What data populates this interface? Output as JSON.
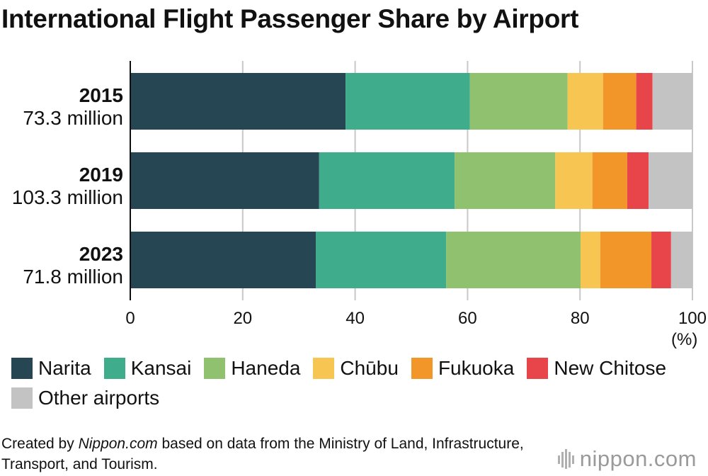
{
  "title": "International Flight Passenger Share by Airport",
  "colors": {
    "Narita": "#264653",
    "Kansai": "#3fac8c",
    "Haneda": "#8fc16e",
    "Chūbu": "#f7c551",
    "Fukuoka": "#f3962a",
    "New Chitose": "#e8454a",
    "Other airports": "#c3c3c3",
    "grid": "#c8c8c8",
    "axis": "#111111"
  },
  "chart_data": {
    "type": "bar",
    "orientation": "horizontal",
    "stacked": true,
    "title": "International Flight Passenger Share by Airport",
    "categories": [
      {
        "year": "2015",
        "total": "73.3 million"
      },
      {
        "year": "2019",
        "total": "103.3 million"
      },
      {
        "year": "2023",
        "total": "71.8 million"
      }
    ],
    "series": [
      {
        "name": "Narita",
        "values": [
          38.3,
          33.6,
          33.0
        ]
      },
      {
        "name": "Kansai",
        "values": [
          22.1,
          24.1,
          23.2
        ]
      },
      {
        "name": "Haneda",
        "values": [
          17.4,
          17.9,
          23.9
        ]
      },
      {
        "name": "Chūbu",
        "values": [
          6.3,
          6.6,
          3.5
        ]
      },
      {
        "name": "Fukuoka",
        "values": [
          5.9,
          6.2,
          9.1
        ]
      },
      {
        "name": "New Chitose",
        "values": [
          2.9,
          3.8,
          3.5
        ]
      },
      {
        "name": "Other airports",
        "values": [
          7.1,
          7.8,
          3.8
        ]
      }
    ],
    "xlim": [
      0,
      100
    ],
    "xticks": [
      0,
      20,
      40,
      60,
      80,
      100
    ],
    "xlabel_unit": "(%)",
    "grid": true,
    "legend": "bottom"
  },
  "footer": {
    "prefix": "Created by ",
    "source_name": "Nippon.com",
    "suffix": " based on data from the Ministry of Land, Infrastructure, Transport, and Tourism."
  },
  "brand": {
    "name": "nippon.com",
    "icon": "nippon-logo-icon"
  }
}
